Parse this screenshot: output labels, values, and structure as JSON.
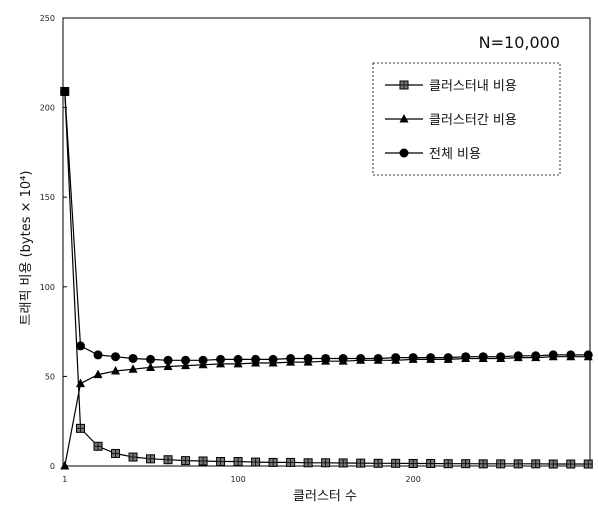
{
  "chart_data": {
    "type": "line",
    "annotation": "N=10,000",
    "xlabel": "클러스터 수",
    "ylabel": "트래픽 비용 (bytes × 10⁴)",
    "xlim": [
      0,
      301
    ],
    "ylim": [
      0,
      250
    ],
    "x_ticks": [
      1,
      100,
      200
    ],
    "y_ticks": [
      0,
      50,
      100,
      150,
      200,
      250
    ],
    "legend_position": "top-right",
    "grid": false,
    "x": [
      1,
      10,
      20,
      30,
      40,
      50,
      60,
      70,
      80,
      90,
      100,
      110,
      120,
      130,
      140,
      150,
      160,
      170,
      180,
      190,
      200,
      210,
      220,
      230,
      240,
      250,
      260,
      270,
      280,
      290,
      300
    ],
    "series": [
      {
        "name": "클러스터내 비용",
        "marker": "square",
        "values": [
          209,
          21,
          11,
          7,
          5,
          4,
          3.5,
          3,
          2.8,
          2.5,
          2.5,
          2.2,
          2,
          2,
          1.8,
          1.8,
          1.7,
          1.6,
          1.5,
          1.5,
          1.4,
          1.4,
          1.3,
          1.3,
          1.2,
          1.2,
          1.2,
          1.2,
          1.1,
          1.1,
          1.1
        ]
      },
      {
        "name": "클러스터간 비용",
        "marker": "triangle",
        "values": [
          0,
          46,
          51,
          53,
          54,
          55,
          55.5,
          56,
          56.5,
          57,
          57,
          57.5,
          57.5,
          58,
          58,
          58.5,
          58.5,
          59,
          59,
          59,
          59.5,
          59.5,
          59.5,
          60,
          60,
          60,
          60.5,
          60.5,
          61,
          61,
          61
        ]
      },
      {
        "name": "전체 비용",
        "marker": "circle",
        "values": [
          209,
          67,
          62,
          61,
          60,
          59.5,
          59,
          59,
          59,
          59.5,
          59.5,
          59.5,
          59.5,
          60,
          60,
          60,
          60,
          60,
          60,
          60.5,
          60.5,
          60.5,
          60.5,
          61,
          61,
          61,
          61.5,
          61.5,
          62,
          62,
          62
        ]
      }
    ]
  }
}
